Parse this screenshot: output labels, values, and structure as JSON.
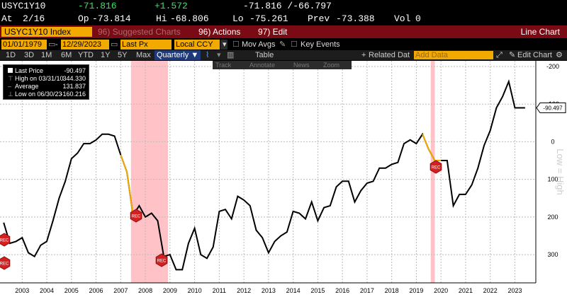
{
  "ticker": {
    "symbol": "USYC1Y10",
    "last": "-71.816",
    "change": "+1.572",
    "bid_ask": "-71.816 /-66.797",
    "at_label": "At",
    "time": "2/16",
    "op_label": "Op",
    "open": "-73.814",
    "hi_label": "Hi",
    "high": "-68.806",
    "lo_label": "Lo",
    "low": "-75.261",
    "prev_label": "Prev",
    "prev": "-73.388",
    "vol_label": "Vol",
    "volume": "0"
  },
  "toolbar": {
    "index_label": "USYC1Y10 Index",
    "suggested": "96) Suggested Charts",
    "actions": "96) Actions",
    "edit": "97) Edit",
    "view_title": "Line Chart"
  },
  "controls": {
    "start_date": "01/01/1979",
    "end_date": "12/29/2023",
    "field": "Last Px",
    "currency": "Local CCY",
    "mov_avgs": "Mov Avgs",
    "key_events": "Key Events"
  },
  "periods": [
    "1D",
    "3D",
    "1M",
    "6M",
    "YTD",
    "1Y",
    "5Y",
    "Max"
  ],
  "frequency": "Quarterly",
  "table_label": "Table",
  "related_label": "Related Dat",
  "add_data_placeholder": "Add Data",
  "edit_chart_label": "Edit Chart",
  "annot_tools": [
    "Track",
    "Annotate",
    "News",
    "Zoom"
  ],
  "legend": {
    "last_price_label": "Last Price",
    "last_price": "-90.497",
    "high_label": "High on 03/31/10",
    "high": "344.330",
    "avg_label": "Average",
    "avg": "131.837",
    "low_label": "Low on 06/30/23",
    "low": "-160.216"
  },
  "colors": {
    "accent": "#f2a900",
    "bar": "#7a0b14",
    "recession": "#ff9aa2",
    "line": "#000000",
    "background": "#ffffff"
  },
  "chart_data": {
    "type": "line",
    "series": [
      {
        "x": [
          "2002-10",
          "2003-01",
          "2003-04",
          "2003-07",
          "2003-10",
          "2004-01",
          "2004-04",
          "2004-07",
          "2004-10",
          "2005-01",
          "2005-04",
          "2005-07",
          "2005-10",
          "2006-01",
          "2006-04",
          "2006-07",
          "2006-10",
          "2007-01",
          "2007-04",
          "2007-07",
          "2007-10",
          "2008-01",
          "2008-04",
          "2008-07",
          "2008-10",
          "2009-01",
          "2009-04",
          "2009-07",
          "2009-10",
          "2010-01",
          "2010-04",
          "2010-07",
          "2010-10",
          "2011-01",
          "2011-04",
          "2011-07",
          "2011-10",
          "2012-01",
          "2012-04",
          "2012-07",
          "2012-10",
          "2013-01",
          "2013-04",
          "2013-07",
          "2013-10",
          "2014-01",
          "2014-04",
          "2014-07",
          "2014-10",
          "2015-01",
          "2015-04",
          "2015-07",
          "2015-10",
          "2016-01",
          "2016-04",
          "2016-07",
          "2016-10",
          "2017-01",
          "2017-04",
          "2017-07",
          "2017-10",
          "2018-01",
          "2018-04",
          "2018-07",
          "2018-10",
          "2019-01",
          "2019-04",
          "2019-07",
          "2019-10",
          "2020-01",
          "2020-04",
          "2020-07",
          "2020-10",
          "2021-01",
          "2021-04",
          "2021-07",
          "2021-10",
          "2022-01",
          "2022-04",
          "2022-07",
          "2022-10",
          "2023-01",
          "2023-04",
          "2023-07",
          "2023-10",
          "2023-12"
        ],
        "values": [
          215,
          270,
          265,
          255,
          295,
          305,
          275,
          265,
          210,
          150,
          105,
          45,
          30,
          5,
          5,
          -5,
          -20,
          -20,
          -15,
          35,
          80,
          195,
          170,
          200,
          190,
          210,
          305,
          300,
          340,
          340,
          270,
          230,
          300,
          310,
          280,
          185,
          180,
          205,
          145,
          155,
          170,
          235,
          255,
          295,
          265,
          250,
          240,
          185,
          190,
          205,
          160,
          210,
          175,
          170,
          120,
          105,
          105,
          160,
          130,
          110,
          105,
          70,
          70,
          60,
          55,
          5,
          -5,
          5,
          -20,
          20,
          50,
          50,
          50,
          170,
          140,
          140,
          115,
          70,
          10,
          -30,
          -90,
          -120,
          -160,
          -90,
          -90,
          -90
        ]
      }
    ],
    "y_inverted": true,
    "y_axis_title": "Low = High",
    "ylim": [
      -200,
      360
    ],
    "yticks": [
      -200,
      -100,
      0,
      100,
      200,
      300
    ],
    "ytick_labels": [
      "-200",
      "-100",
      "0",
      "100",
      "200",
      "300"
    ],
    "xticks": [
      "2003",
      "2004",
      "2005",
      "2006",
      "2007",
      "2008",
      "2009",
      "2010",
      "2011",
      "2012",
      "2013",
      "2014",
      "2015",
      "2016",
      "2017",
      "2018",
      "2019",
      "2020",
      "2021",
      "2022",
      "2023"
    ],
    "recessions": [
      [
        "2007-12",
        "2009-06"
      ],
      [
        "2020-02",
        "2020-04"
      ]
    ],
    "recession_label": "REC",
    "last_label": "-90.497",
    "grid": true
  }
}
